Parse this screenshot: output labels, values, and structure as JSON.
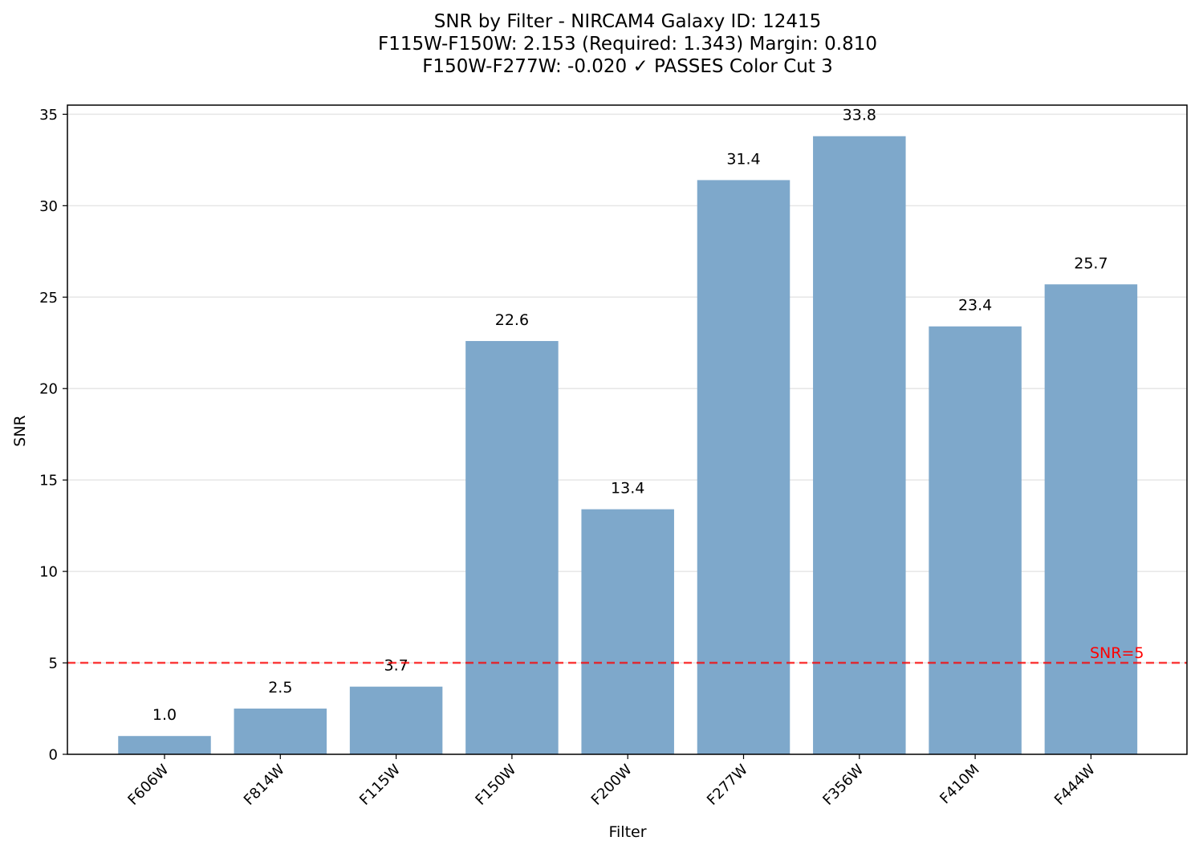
{
  "chart_data": {
    "type": "bar",
    "title_lines": [
      "SNR by Filter - NIRCAM4 Galaxy ID: 12415",
      "F115W-F150W: 2.153 (Required: 1.343) Margin: 0.810",
      "F150W-F277W: -0.020 ✓ PASSES Color Cut 3"
    ],
    "xlabel": "Filter",
    "ylabel": "SNR",
    "categories": [
      "F606W",
      "F814W",
      "F115W",
      "F150W",
      "F200W",
      "F277W",
      "F356W",
      "F410M",
      "F444W"
    ],
    "values": [
      1.0,
      2.5,
      3.7,
      22.6,
      13.4,
      31.4,
      33.8,
      23.4,
      25.7
    ],
    "value_labels": [
      "1.0",
      "2.5",
      "3.7",
      "22.6",
      "13.4",
      "31.4",
      "33.8",
      "23.4",
      "25.7"
    ],
    "ylim": [
      0,
      35.5
    ],
    "yticks": [
      0,
      5,
      10,
      15,
      20,
      25,
      30,
      35
    ],
    "grid": "horizontal",
    "reference_line": {
      "value": 5,
      "label": "SNR=5",
      "color": "#ff0000",
      "style": "dashed"
    },
    "bar_color": "#7ea8cb"
  }
}
